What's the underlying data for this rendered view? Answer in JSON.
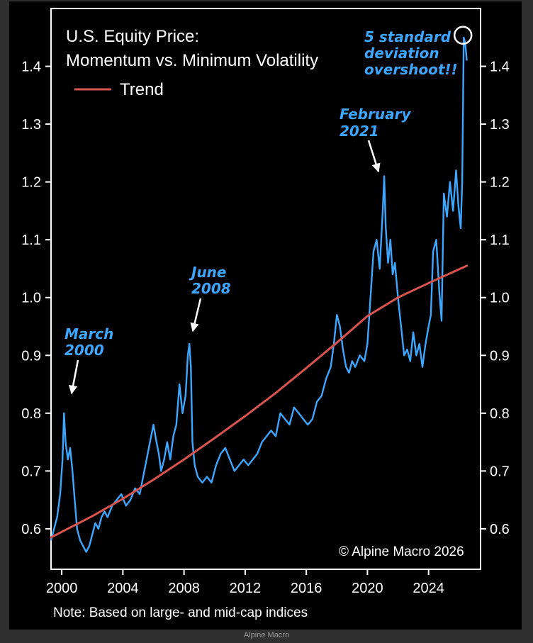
{
  "caption": "Alpine Macro",
  "chart_data": {
    "type": "line",
    "title_line1": "U.S. Equity Price:",
    "title_line2": "Momentum vs. Minimum Volatility",
    "legend": [
      {
        "name": "Trend",
        "color": "#d9534f"
      }
    ],
    "note": "Note: Based on large- and mid-cap indices",
    "copyright": "© Alpine Macro 2026",
    "xlim": [
      1999.3,
      2027.4
    ],
    "ylim": [
      0.53,
      1.5
    ],
    "x_ticks": [
      2000,
      2004,
      2008,
      2012,
      2016,
      2020,
      2024
    ],
    "x_tick_labels": [
      "2000",
      "2004",
      "2008",
      "2012",
      "2016",
      "2020",
      "2024"
    ],
    "y_ticks": [
      0.6,
      0.7,
      0.8,
      0.9,
      1.0,
      1.1,
      1.2,
      1.3,
      1.4
    ],
    "y_tick_labels": [
      "0.6",
      "0.7",
      "0.8",
      "0.9",
      "1.0",
      "1.1",
      "1.2",
      "1.3",
      "1.4"
    ],
    "colors": {
      "series": "#3da6ff",
      "trend": "#d9534f",
      "annotation": "#3da6ff",
      "background": "#000000",
      "axis": "#ffffff"
    },
    "series": [
      {
        "name": "Momentum vs. Minimum Volatility",
        "x": [
          1999.3,
          1999.5,
          1999.7,
          1999.9,
          2000.05,
          2000.15,
          2000.25,
          2000.4,
          2000.55,
          2000.7,
          2000.85,
          2001.0,
          2001.2,
          2001.4,
          2001.6,
          2001.8,
          2002.0,
          2002.2,
          2002.4,
          2002.6,
          2002.8,
          2003.0,
          2003.3,
          2003.6,
          2003.9,
          2004.2,
          2004.5,
          2004.8,
          2005.1,
          2005.4,
          2005.7,
          2006.0,
          2006.2,
          2006.35,
          2006.5,
          2006.7,
          2006.9,
          2007.1,
          2007.3,
          2007.5,
          2007.7,
          2007.9,
          2008.1,
          2008.25,
          2008.35,
          2008.45,
          2008.55,
          2008.7,
          2008.9,
          2009.2,
          2009.5,
          2009.8,
          2010.1,
          2010.4,
          2010.7,
          2011.0,
          2011.3,
          2011.6,
          2011.9,
          2012.2,
          2012.5,
          2012.8,
          2013.1,
          2013.4,
          2013.7,
          2014.0,
          2014.3,
          2014.6,
          2014.9,
          2015.2,
          2015.5,
          2015.8,
          2016.1,
          2016.4,
          2016.7,
          2017.0,
          2017.3,
          2017.6,
          2017.8,
          2018.0,
          2018.2,
          2018.4,
          2018.6,
          2018.8,
          2019.0,
          2019.2,
          2019.5,
          2019.8,
          2020.0,
          2020.2,
          2020.4,
          2020.6,
          2020.8,
          2021.0,
          2021.1,
          2021.2,
          2021.35,
          2021.5,
          2021.65,
          2021.8,
          2022.0,
          2022.2,
          2022.4,
          2022.6,
          2022.8,
          2023.0,
          2023.2,
          2023.4,
          2023.6,
          2023.8,
          2024.0,
          2024.15,
          2024.3,
          2024.5,
          2024.7,
          2024.85,
          2025.0,
          2025.2,
          2025.4,
          2025.6,
          2025.8,
          2025.95,
          2026.1,
          2026.2,
          2026.3,
          2026.4,
          2026.5
        ],
        "y": [
          0.58,
          0.6,
          0.62,
          0.66,
          0.72,
          0.8,
          0.75,
          0.72,
          0.74,
          0.7,
          0.65,
          0.6,
          0.58,
          0.57,
          0.56,
          0.57,
          0.59,
          0.61,
          0.6,
          0.62,
          0.63,
          0.62,
          0.64,
          0.65,
          0.66,
          0.64,
          0.65,
          0.67,
          0.66,
          0.7,
          0.74,
          0.78,
          0.75,
          0.73,
          0.7,
          0.72,
          0.75,
          0.72,
          0.76,
          0.78,
          0.85,
          0.8,
          0.83,
          0.9,
          0.92,
          0.88,
          0.75,
          0.71,
          0.69,
          0.68,
          0.69,
          0.68,
          0.71,
          0.73,
          0.74,
          0.72,
          0.7,
          0.71,
          0.72,
          0.71,
          0.72,
          0.73,
          0.75,
          0.76,
          0.77,
          0.76,
          0.8,
          0.79,
          0.78,
          0.81,
          0.8,
          0.79,
          0.78,
          0.79,
          0.82,
          0.83,
          0.86,
          0.88,
          0.92,
          0.97,
          0.95,
          0.91,
          0.88,
          0.87,
          0.89,
          0.88,
          0.9,
          0.89,
          0.92,
          1.0,
          1.08,
          1.1,
          1.05,
          1.15,
          1.21,
          1.12,
          1.06,
          1.1,
          1.04,
          1.06,
          1.0,
          0.95,
          0.9,
          0.91,
          0.89,
          0.94,
          0.9,
          0.92,
          0.88,
          0.92,
          0.95,
          0.97,
          1.08,
          1.1,
          1.01,
          0.96,
          1.18,
          1.14,
          1.2,
          1.15,
          1.22,
          1.16,
          1.12,
          1.2,
          1.45,
          1.44,
          1.41
        ]
      },
      {
        "name": "Trend",
        "x": [
          1999.3,
          2002,
          2004,
          2006,
          2008,
          2010,
          2012,
          2014,
          2016,
          2018,
          2020,
          2022,
          2024,
          2026.5
        ],
        "y": [
          0.585,
          0.622,
          0.652,
          0.685,
          0.72,
          0.757,
          0.795,
          0.835,
          0.878,
          0.922,
          0.968,
          1.0,
          1.025,
          1.055
        ]
      }
    ],
    "annotations": [
      {
        "lines": [
          "March",
          "2000"
        ],
        "x": 2000.15,
        "y": 0.8
      },
      {
        "lines": [
          "June",
          "2008"
        ],
        "x": 2008.35,
        "y": 0.92
      },
      {
        "lines": [
          "February",
          "2021"
        ],
        "x": 2021.2,
        "y": 1.21
      },
      {
        "lines": [
          "5 standard",
          "deviation",
          "overshoot!!"
        ],
        "x": 2026.25,
        "y": 1.45
      }
    ]
  }
}
